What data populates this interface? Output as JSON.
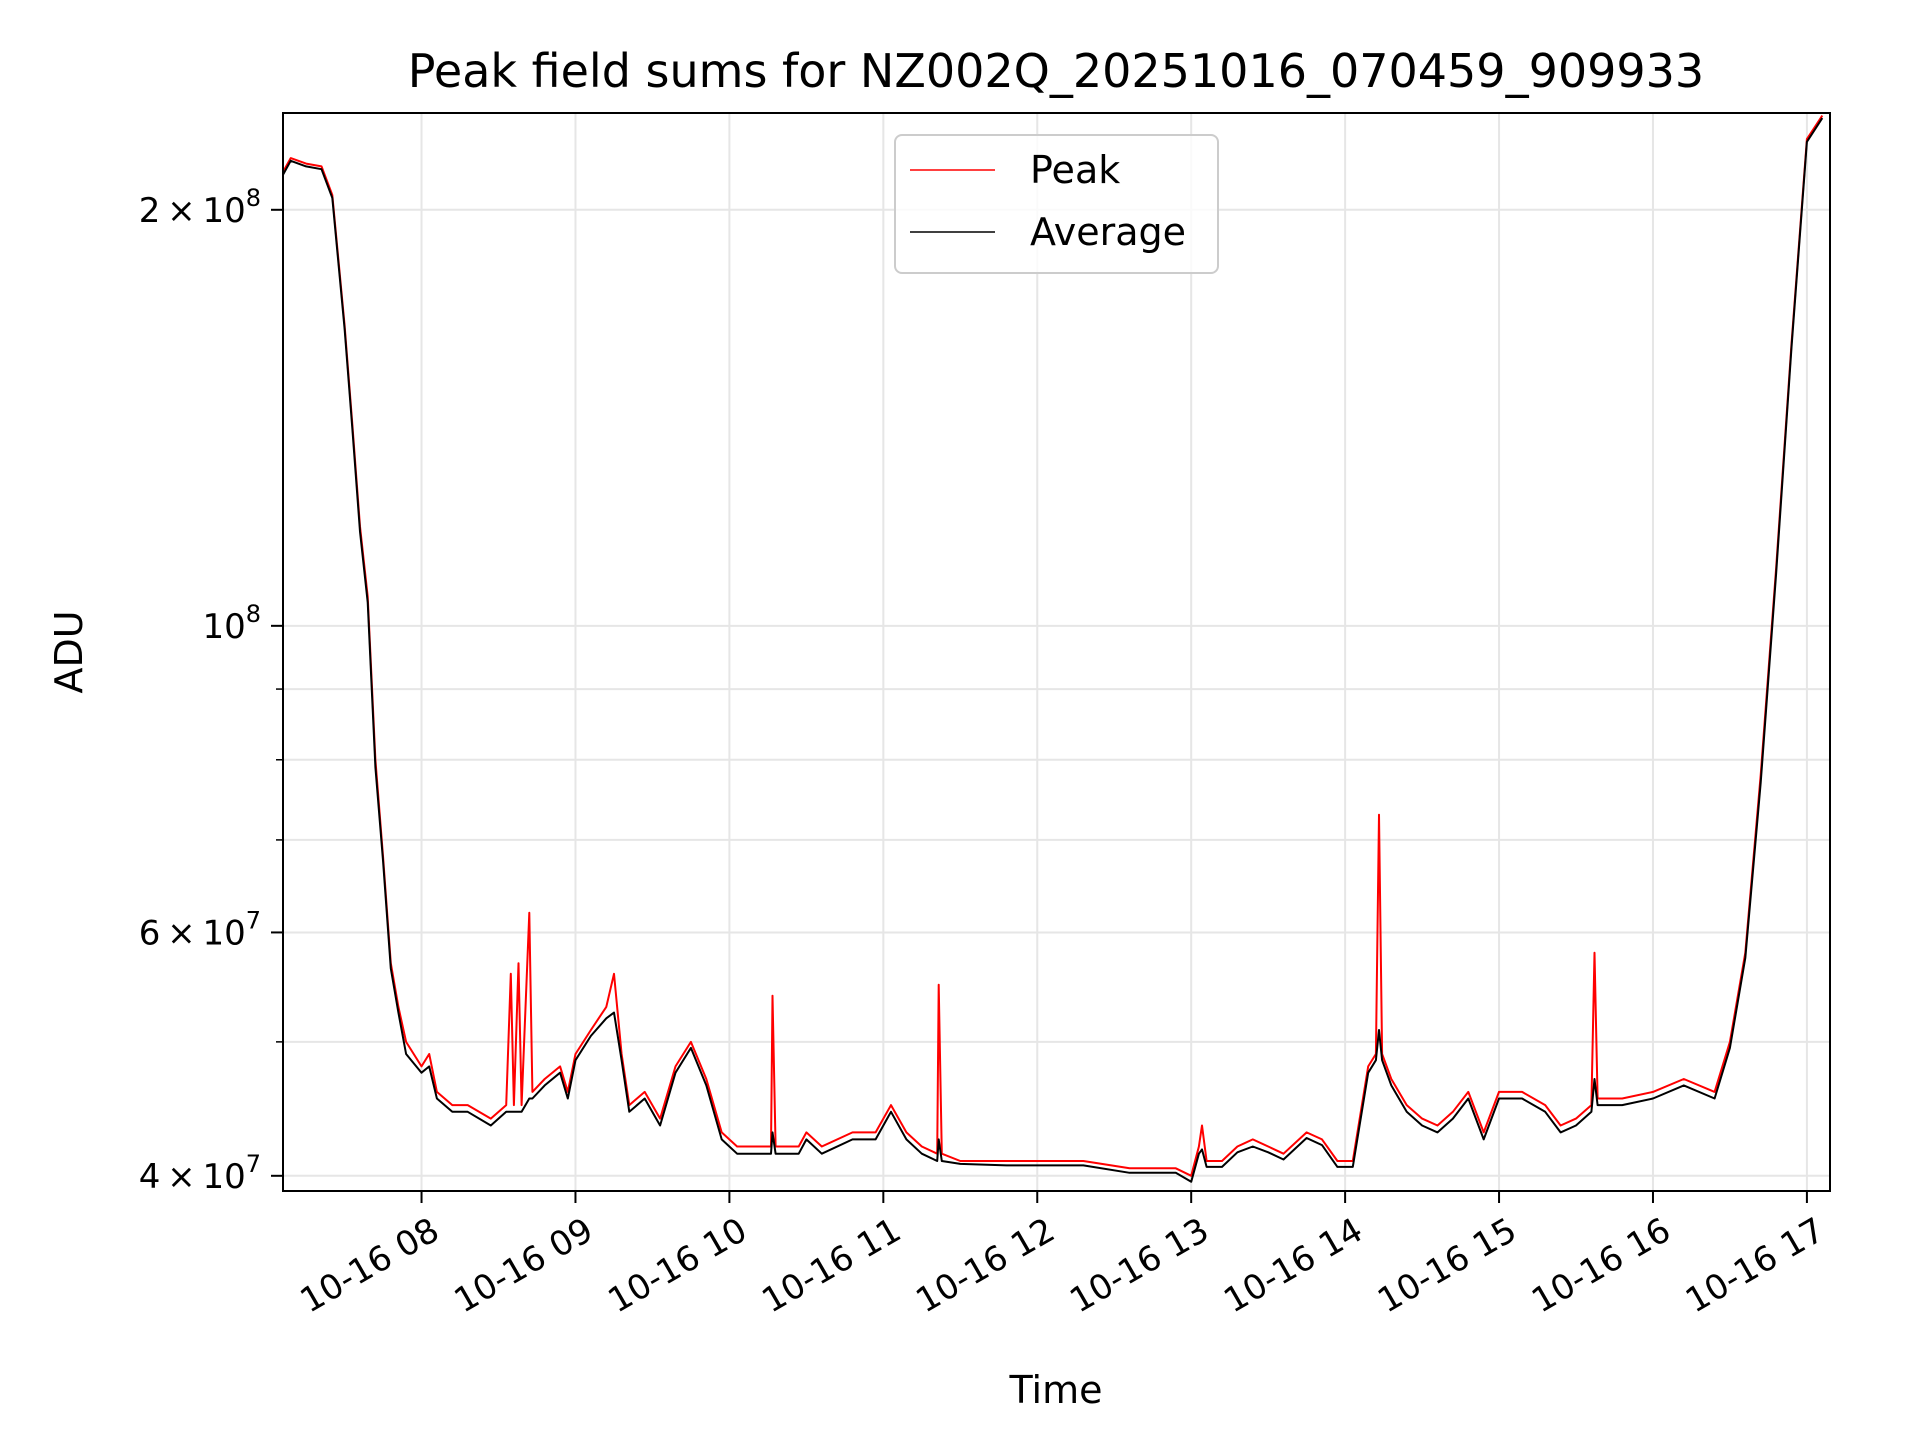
{
  "chart_data": {
    "type": "line",
    "title": "Peak field sums for NZ002Q_20251016_070459_909933",
    "xlabel": "Time",
    "ylabel": "ADU",
    "yscale": "log",
    "ylim": [
      39000000,
      235000000
    ],
    "xlim_hours": [
      7.1,
      17.15
    ],
    "grid": true,
    "legend_position": "upper center",
    "x_ticks": [
      {
        "hour": 8,
        "label": "10-16 08"
      },
      {
        "hour": 9,
        "label": "10-16 09"
      },
      {
        "hour": 10,
        "label": "10-16 10"
      },
      {
        "hour": 11,
        "label": "10-16 11"
      },
      {
        "hour": 12,
        "label": "10-16 12"
      },
      {
        "hour": 13,
        "label": "10-16 13"
      },
      {
        "hour": 14,
        "label": "10-16 14"
      },
      {
        "hour": 15,
        "label": "10-16 15"
      },
      {
        "hour": 16,
        "label": "10-16 16"
      },
      {
        "hour": 17,
        "label": "10-16 17"
      }
    ],
    "y_major_ticks": [
      {
        "value": 40000000,
        "mant": "4",
        "exp": "7"
      },
      {
        "value": 60000000,
        "mant": "6",
        "exp": "7"
      },
      {
        "value": 100000000,
        "mant": "",
        "exp": "8"
      },
      {
        "value": 200000000,
        "mant": "2",
        "exp": "8"
      }
    ],
    "y_minor_ticks": [
      50000000,
      70000000,
      80000000,
      90000000,
      300000000
    ],
    "series": [
      {
        "name": "Peak",
        "color": "#ff0000",
        "points": [
          [
            7.1,
            213000000
          ],
          [
            7.15,
            218000000
          ],
          [
            7.25,
            216000000
          ],
          [
            7.35,
            215000000
          ],
          [
            7.42,
            205000000
          ],
          [
            7.5,
            165000000
          ],
          [
            7.55,
            140000000
          ],
          [
            7.6,
            118000000
          ],
          [
            7.65,
            105000000
          ],
          [
            7.7,
            80000000
          ],
          [
            7.75,
            68000000
          ],
          [
            7.8,
            57000000
          ],
          [
            7.85,
            53000000
          ],
          [
            7.9,
            50000000
          ],
          [
            8.0,
            48000000
          ],
          [
            8.05,
            49000000
          ],
          [
            8.1,
            46000000
          ],
          [
            8.2,
            45000000
          ],
          [
            8.3,
            45000000
          ],
          [
            8.45,
            44000000
          ],
          [
            8.55,
            45000000
          ],
          [
            8.58,
            56000000
          ],
          [
            8.6,
            45000000
          ],
          [
            8.63,
            57000000
          ],
          [
            8.65,
            45000000
          ],
          [
            8.7,
            62000000
          ],
          [
            8.72,
            46000000
          ],
          [
            8.8,
            47000000
          ],
          [
            8.9,
            48000000
          ],
          [
            8.95,
            46000000
          ],
          [
            9.0,
            49000000
          ],
          [
            9.1,
            51000000
          ],
          [
            9.2,
            53000000
          ],
          [
            9.25,
            56000000
          ],
          [
            9.3,
            49000000
          ],
          [
            9.35,
            45000000
          ],
          [
            9.45,
            46000000
          ],
          [
            9.55,
            44000000
          ],
          [
            9.65,
            48000000
          ],
          [
            9.75,
            50000000
          ],
          [
            9.85,
            47000000
          ],
          [
            9.95,
            43000000
          ],
          [
            10.05,
            42000000
          ],
          [
            10.15,
            42000000
          ],
          [
            10.27,
            42000000
          ],
          [
            10.28,
            54000000
          ],
          [
            10.3,
            42000000
          ],
          [
            10.45,
            42000000
          ],
          [
            10.5,
            43000000
          ],
          [
            10.6,
            42000000
          ],
          [
            10.8,
            43000000
          ],
          [
            10.95,
            43000000
          ],
          [
            11.05,
            45000000
          ],
          [
            11.15,
            43000000
          ],
          [
            11.25,
            42000000
          ],
          [
            11.35,
            41500000
          ],
          [
            11.36,
            55000000
          ],
          [
            11.38,
            41500000
          ],
          [
            11.5,
            41000000
          ],
          [
            11.8,
            41000000
          ],
          [
            12.0,
            41000000
          ],
          [
            12.3,
            41000000
          ],
          [
            12.6,
            40500000
          ],
          [
            12.9,
            40500000
          ],
          [
            13.0,
            40000000
          ],
          [
            13.05,
            42000000
          ],
          [
            13.07,
            43500000
          ],
          [
            13.1,
            41000000
          ],
          [
            13.2,
            41000000
          ],
          [
            13.3,
            42000000
          ],
          [
            13.4,
            42500000
          ],
          [
            13.5,
            42000000
          ],
          [
            13.6,
            41500000
          ],
          [
            13.75,
            43000000
          ],
          [
            13.85,
            42500000
          ],
          [
            13.95,
            41000000
          ],
          [
            14.05,
            41000000
          ],
          [
            14.15,
            48000000
          ],
          [
            14.2,
            49000000
          ],
          [
            14.22,
            73000000
          ],
          [
            14.24,
            49000000
          ],
          [
            14.3,
            47000000
          ],
          [
            14.4,
            45000000
          ],
          [
            14.5,
            44000000
          ],
          [
            14.6,
            43500000
          ],
          [
            14.7,
            44500000
          ],
          [
            14.8,
            46000000
          ],
          [
            14.9,
            43000000
          ],
          [
            15.0,
            46000000
          ],
          [
            15.15,
            46000000
          ],
          [
            15.3,
            45000000
          ],
          [
            15.4,
            43500000
          ],
          [
            15.5,
            44000000
          ],
          [
            15.6,
            45000000
          ],
          [
            15.62,
            58000000
          ],
          [
            15.64,
            45500000
          ],
          [
            15.8,
            45500000
          ],
          [
            16.0,
            46000000
          ],
          [
            16.2,
            47000000
          ],
          [
            16.4,
            46000000
          ],
          [
            16.5,
            50000000
          ],
          [
            16.6,
            58000000
          ],
          [
            16.7,
            78000000
          ],
          [
            16.8,
            110000000
          ],
          [
            16.9,
            160000000
          ],
          [
            17.0,
            225000000
          ],
          [
            17.1,
            234000000
          ]
        ]
      },
      {
        "name": "Average",
        "color": "#000000",
        "points": [
          [
            7.1,
            212000000
          ],
          [
            7.15,
            217000000
          ],
          [
            7.25,
            215000000
          ],
          [
            7.35,
            214000000
          ],
          [
            7.42,
            204000000
          ],
          [
            7.5,
            164000000
          ],
          [
            7.55,
            139000000
          ],
          [
            7.6,
            117000000
          ],
          [
            7.65,
            104000000
          ],
          [
            7.7,
            79000000
          ],
          [
            7.75,
            67500000
          ],
          [
            7.8,
            56500000
          ],
          [
            7.85,
            52500000
          ],
          [
            7.9,
            49000000
          ],
          [
            8.0,
            47500000
          ],
          [
            8.05,
            48000000
          ],
          [
            8.1,
            45500000
          ],
          [
            8.2,
            44500000
          ],
          [
            8.3,
            44500000
          ],
          [
            8.45,
            43500000
          ],
          [
            8.55,
            44500000
          ],
          [
            8.58,
            44500000
          ],
          [
            8.6,
            44500000
          ],
          [
            8.63,
            44500000
          ],
          [
            8.65,
            44500000
          ],
          [
            8.7,
            45500000
          ],
          [
            8.72,
            45500000
          ],
          [
            8.8,
            46500000
          ],
          [
            8.9,
            47500000
          ],
          [
            8.95,
            45500000
          ],
          [
            9.0,
            48500000
          ],
          [
            9.1,
            50500000
          ],
          [
            9.2,
            52000000
          ],
          [
            9.25,
            52500000
          ],
          [
            9.3,
            48500000
          ],
          [
            9.35,
            44500000
          ],
          [
            9.45,
            45500000
          ],
          [
            9.55,
            43500000
          ],
          [
            9.65,
            47500000
          ],
          [
            9.75,
            49500000
          ],
          [
            9.85,
            46500000
          ],
          [
            9.95,
            42500000
          ],
          [
            10.05,
            41500000
          ],
          [
            10.15,
            41500000
          ],
          [
            10.27,
            41500000
          ],
          [
            10.28,
            43000000
          ],
          [
            10.3,
            41500000
          ],
          [
            10.45,
            41500000
          ],
          [
            10.5,
            42500000
          ],
          [
            10.6,
            41500000
          ],
          [
            10.8,
            42500000
          ],
          [
            10.95,
            42500000
          ],
          [
            11.05,
            44500000
          ],
          [
            11.15,
            42500000
          ],
          [
            11.25,
            41500000
          ],
          [
            11.35,
            41000000
          ],
          [
            11.36,
            42500000
          ],
          [
            11.38,
            41000000
          ],
          [
            11.5,
            40800000
          ],
          [
            11.8,
            40700000
          ],
          [
            12.0,
            40700000
          ],
          [
            12.3,
            40700000
          ],
          [
            12.6,
            40200000
          ],
          [
            12.9,
            40200000
          ],
          [
            13.0,
            39600000
          ],
          [
            13.05,
            41500000
          ],
          [
            13.07,
            41800000
          ],
          [
            13.1,
            40600000
          ],
          [
            13.2,
            40600000
          ],
          [
            13.3,
            41600000
          ],
          [
            13.4,
            42000000
          ],
          [
            13.5,
            41600000
          ],
          [
            13.6,
            41100000
          ],
          [
            13.75,
            42600000
          ],
          [
            13.85,
            42100000
          ],
          [
            13.95,
            40600000
          ],
          [
            14.05,
            40600000
          ],
          [
            14.15,
            47500000
          ],
          [
            14.2,
            48500000
          ],
          [
            14.22,
            51000000
          ],
          [
            14.24,
            48500000
          ],
          [
            14.3,
            46500000
          ],
          [
            14.4,
            44500000
          ],
          [
            14.5,
            43500000
          ],
          [
            14.6,
            43000000
          ],
          [
            14.7,
            44000000
          ],
          [
            14.8,
            45500000
          ],
          [
            14.9,
            42500000
          ],
          [
            15.0,
            45500000
          ],
          [
            15.15,
            45500000
          ],
          [
            15.3,
            44500000
          ],
          [
            15.4,
            43000000
          ],
          [
            15.5,
            43500000
          ],
          [
            15.6,
            44500000
          ],
          [
            15.62,
            47000000
          ],
          [
            15.64,
            45000000
          ],
          [
            15.8,
            45000000
          ],
          [
            16.0,
            45500000
          ],
          [
            16.2,
            46500000
          ],
          [
            16.4,
            45500000
          ],
          [
            16.5,
            49500000
          ],
          [
            16.6,
            57500000
          ],
          [
            16.7,
            77000000
          ],
          [
            16.8,
            109000000
          ],
          [
            16.9,
            159000000
          ],
          [
            17.0,
            224000000
          ],
          [
            17.1,
            233000000
          ]
        ]
      }
    ]
  }
}
